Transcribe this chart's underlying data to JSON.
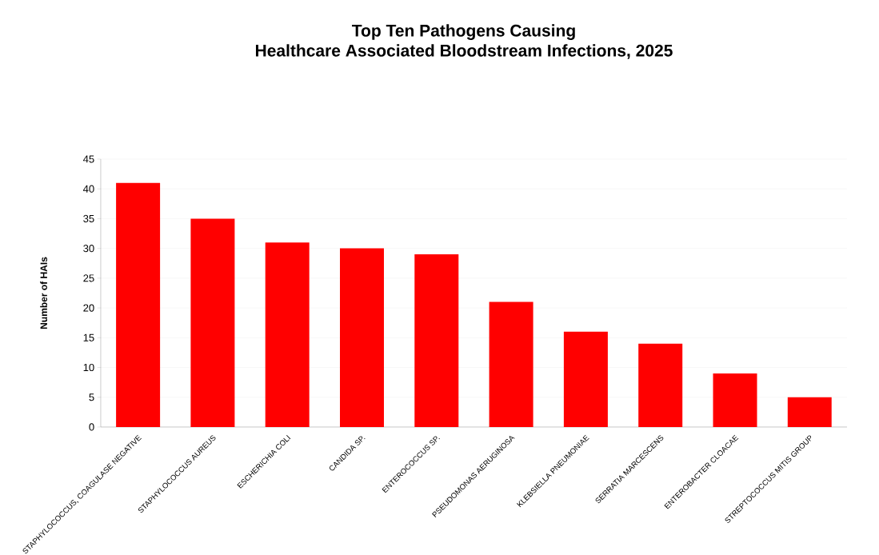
{
  "chart_data": {
    "type": "bar",
    "title": "Top Ten Pathogens Causing\nHealthcare Associated Bloodstream Infections, 2025",
    "ylabel": "Number of HAIs",
    "categories": [
      "STAPHYLOCOCCUS, COAGULASE NEGATIVE",
      "STAPHYLOCOCCUS AUREUS",
      "ESCHERICHIA COLI",
      "CANDIDA SP.",
      "ENTEROCOCCUS SP.",
      "PSEUDOMONAS AERUGINOSA",
      "KLEBSIELLA PNEUMONIAE",
      "SERRATIA MARCESCENS",
      "ENTEROBACTER CLOACAE",
      "STREPTOCOCCUS MITIS GROUP"
    ],
    "values": [
      41,
      35,
      31,
      30,
      29,
      21,
      16,
      14,
      9,
      5
    ],
    "color": "#ff0000",
    "ylim": [
      0,
      45
    ],
    "yticks": [
      0,
      5,
      10,
      15,
      20,
      25,
      30,
      35,
      40,
      45
    ],
    "grid": "y"
  }
}
